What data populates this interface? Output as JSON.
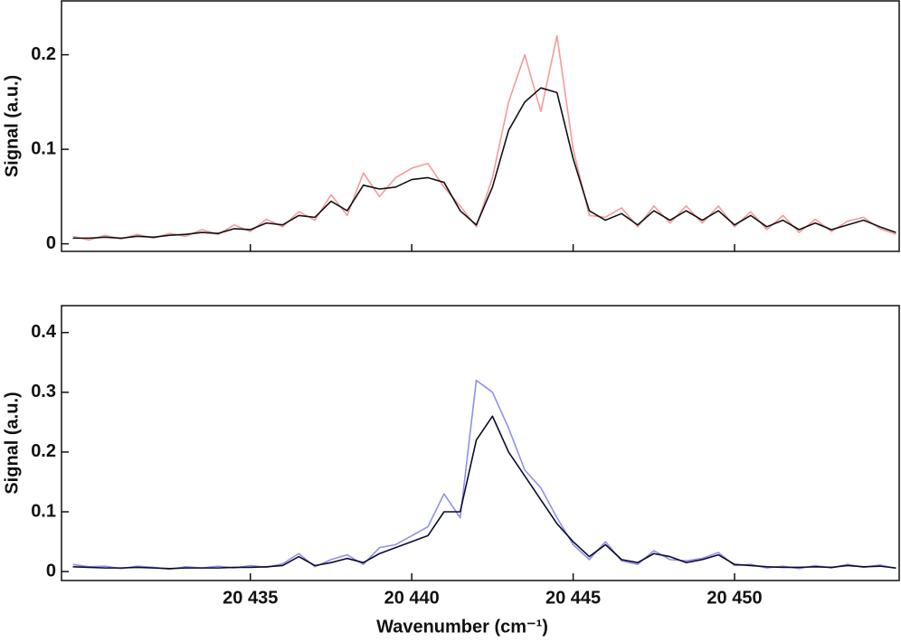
{
  "chart_data": [
    {
      "type": "line",
      "ylabel": "Signal (a.u.)",
      "x": [
        20429.5,
        20430,
        20430.5,
        20431,
        20431.5,
        20432,
        20432.5,
        20433,
        20433.5,
        20434,
        20434.5,
        20435,
        20435.5,
        20436,
        20436.5,
        20437,
        20437.5,
        20438,
        20438.5,
        20439,
        20439.5,
        20440,
        20440.5,
        20441,
        20441.5,
        20442,
        20442.5,
        20443,
        20443.5,
        20444,
        20444.5,
        20445,
        20445.5,
        20446,
        20446.5,
        20447,
        20447.5,
        20448,
        20448.5,
        20449,
        20449.5,
        20450,
        20450.5,
        20451,
        20451.5,
        20452,
        20452.5,
        20453,
        20453.5,
        20454,
        20454.5,
        20455
      ],
      "series": [
        {
          "color": "#f49a9a",
          "values": [
            0.008,
            0.004,
            0.009,
            0.005,
            0.01,
            0.006,
            0.011,
            0.008,
            0.015,
            0.01,
            0.02,
            0.013,
            0.026,
            0.018,
            0.034,
            0.025,
            0.052,
            0.03,
            0.075,
            0.05,
            0.07,
            0.08,
            0.085,
            0.06,
            0.04,
            0.018,
            0.07,
            0.15,
            0.2,
            0.14,
            0.22,
            0.1,
            0.03,
            0.028,
            0.038,
            0.018,
            0.04,
            0.022,
            0.04,
            0.022,
            0.04,
            0.018,
            0.034,
            0.015,
            0.03,
            0.012,
            0.026,
            0.013,
            0.024,
            0.028,
            0.016,
            0.01
          ]
        },
        {
          "color": "#111111",
          "values": [
            0.006,
            0.006,
            0.007,
            0.006,
            0.008,
            0.007,
            0.009,
            0.01,
            0.012,
            0.011,
            0.016,
            0.015,
            0.022,
            0.02,
            0.03,
            0.028,
            0.045,
            0.035,
            0.062,
            0.058,
            0.06,
            0.068,
            0.07,
            0.065,
            0.035,
            0.02,
            0.06,
            0.12,
            0.15,
            0.165,
            0.16,
            0.09,
            0.035,
            0.025,
            0.032,
            0.02,
            0.035,
            0.025,
            0.035,
            0.025,
            0.035,
            0.02,
            0.03,
            0.018,
            0.025,
            0.015,
            0.022,
            0.015,
            0.02,
            0.025,
            0.018,
            0.012
          ]
        }
      ],
      "xlim": [
        20429.15,
        20455.1
      ],
      "xticks": [
        20435,
        20440,
        20445,
        20450
      ],
      "ylim": [
        -0.008,
        0.257
      ],
      "yticks": [
        0,
        0.1,
        0.2
      ]
    },
    {
      "type": "line",
      "ylabel": "Signal (a.u.)",
      "xlabel": "Wavenumber (cm⁻¹)",
      "x": [
        20429.5,
        20430,
        20430.5,
        20431,
        20431.5,
        20432,
        20432.5,
        20433,
        20433.5,
        20434,
        20434.5,
        20435,
        20435.5,
        20436,
        20436.5,
        20437,
        20437.5,
        20438,
        20438.5,
        20439,
        20439.5,
        20440,
        20440.5,
        20441,
        20441.5,
        20442,
        20442.5,
        20443,
        20443.5,
        20444,
        20444.5,
        20445,
        20445.5,
        20446,
        20446.5,
        20447,
        20447.5,
        20448,
        20448.5,
        20449,
        20449.5,
        20450,
        20450.5,
        20451,
        20451.5,
        20452,
        20452.5,
        20453,
        20453.5,
        20454,
        20454.5,
        20455
      ],
      "series": [
        {
          "color": "#8f8ff2",
          "values": [
            0.012,
            0.008,
            0.009,
            0.005,
            0.009,
            0.007,
            0.004,
            0.008,
            0.006,
            0.009,
            0.006,
            0.01,
            0.007,
            0.013,
            0.03,
            0.008,
            0.02,
            0.028,
            0.012,
            0.04,
            0.045,
            0.06,
            0.075,
            0.13,
            0.09,
            0.32,
            0.3,
            0.24,
            0.17,
            0.14,
            0.09,
            0.045,
            0.02,
            0.05,
            0.018,
            0.012,
            0.035,
            0.02,
            0.018,
            0.022,
            0.032,
            0.01,
            0.012,
            0.006,
            0.009,
            0.005,
            0.01,
            0.006,
            0.012,
            0.007,
            0.011,
            0.005
          ]
        },
        {
          "color": "#0b0b2e",
          "values": [
            0.008,
            0.007,
            0.006,
            0.006,
            0.007,
            0.006,
            0.005,
            0.006,
            0.006,
            0.006,
            0.007,
            0.007,
            0.008,
            0.01,
            0.025,
            0.01,
            0.015,
            0.022,
            0.015,
            0.03,
            0.04,
            0.05,
            0.06,
            0.1,
            0.1,
            0.22,
            0.26,
            0.2,
            0.16,
            0.12,
            0.08,
            0.05,
            0.025,
            0.045,
            0.02,
            0.015,
            0.03,
            0.025,
            0.015,
            0.02,
            0.028,
            0.012,
            0.01,
            0.008,
            0.007,
            0.007,
            0.008,
            0.007,
            0.01,
            0.008,
            0.009,
            0.006
          ]
        }
      ],
      "xlim": [
        20429.15,
        20455.1
      ],
      "xticks": [
        {
          "value": 20435,
          "label": "20 435"
        },
        {
          "value": 20440,
          "label": "20 440"
        },
        {
          "value": 20445,
          "label": "20 445"
        },
        {
          "value": 20450,
          "label": "20 450"
        }
      ],
      "ylim": [
        -0.015,
        0.445
      ],
      "yticks": [
        0,
        0.1,
        0.2,
        0.3,
        0.4
      ]
    }
  ]
}
